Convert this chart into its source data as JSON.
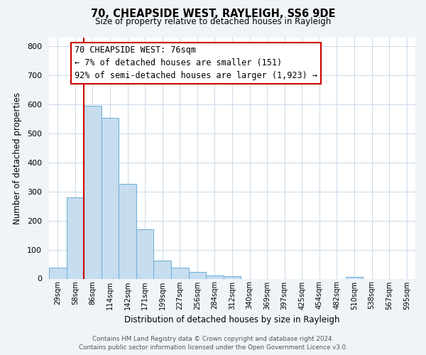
{
  "title": "70, CHEAPSIDE WEST, RAYLEIGH, SS6 9DE",
  "subtitle": "Size of property relative to detached houses in Rayleigh",
  "xlabel": "Distribution of detached houses by size in Rayleigh",
  "ylabel": "Number of detached properties",
  "bar_labels": [
    "29sqm",
    "58sqm",
    "86sqm",
    "114sqm",
    "142sqm",
    "171sqm",
    "199sqm",
    "227sqm",
    "256sqm",
    "284sqm",
    "312sqm",
    "340sqm",
    "369sqm",
    "397sqm",
    "425sqm",
    "454sqm",
    "482sqm",
    "510sqm",
    "538sqm",
    "567sqm",
    "595sqm"
  ],
  "bar_values": [
    38,
    280,
    595,
    552,
    325,
    170,
    63,
    38,
    22,
    12,
    8,
    0,
    0,
    0,
    0,
    0,
    0,
    5,
    0,
    0,
    0
  ],
  "bar_color": "#c6dcef",
  "bar_edge_color": "#6aaed6",
  "vline_color": "#cc0000",
  "annotation_text": "70 CHEAPSIDE WEST: 76sqm\n← 7% of detached houses are smaller (151)\n92% of semi-detached houses are larger (1,923) →",
  "annotation_box_color": "#ffffff",
  "annotation_box_edge": "#cc0000",
  "ylim": [
    0,
    830
  ],
  "yticks": [
    0,
    100,
    200,
    300,
    400,
    500,
    600,
    700,
    800
  ],
  "footer_line1": "Contains HM Land Registry data © Crown copyright and database right 2024.",
  "footer_line2": "Contains public sector information licensed under the Open Government Licence v3.0.",
  "bg_color": "#f0f4f8",
  "plot_bg_color": "#ffffff",
  "grid_color": "#c8d8e8",
  "title_fontsize": 10.5,
  "subtitle_fontsize": 8.5
}
